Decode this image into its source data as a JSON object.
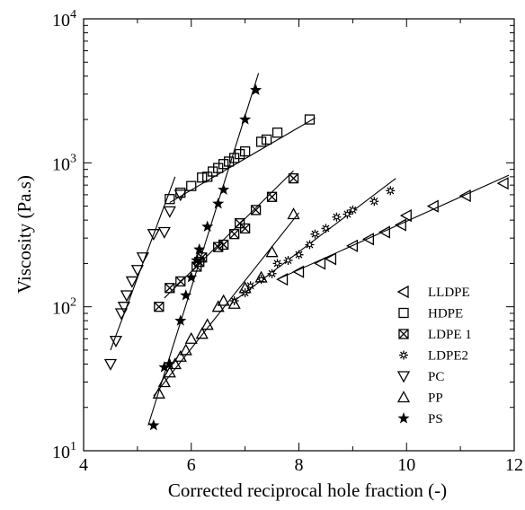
{
  "chart_data": {
    "type": "scatter",
    "xlabel": "Corrected reciprocal hole fraction (-)",
    "ylabel": "Viscosity (Pa.s)",
    "xlim": [
      4,
      12
    ],
    "ylim": [
      10,
      10000
    ],
    "yscale": "log",
    "x_ticks": [
      "4",
      "6",
      "8",
      "10",
      "12"
    ],
    "y_ticks": [
      {
        "base": "10",
        "exp": "1"
      },
      {
        "base": "10",
        "exp": "2"
      },
      {
        "base": "10",
        "exp": "3"
      },
      {
        "base": "10",
        "exp": "4"
      }
    ],
    "legend_position": "bottom-right",
    "series": [
      {
        "name": "LLDPE",
        "marker": "triangle-left",
        "x": [
          7.7,
          8.0,
          8.4,
          8.6,
          9.0,
          9.3,
          9.6,
          9.9,
          10.0,
          10.5,
          11.1,
          11.8
        ],
        "y": [
          155,
          175,
          200,
          215,
          265,
          295,
          330,
          370,
          430,
          500,
          590,
          720
        ],
        "fit": [
          [
            7.6,
            155
          ],
          [
            11.9,
            820
          ]
        ]
      },
      {
        "name": "HDPE",
        "marker": "square",
        "x": [
          5.6,
          5.8,
          6.0,
          6.2,
          6.3,
          6.4,
          6.5,
          6.6,
          6.7,
          6.8,
          6.9,
          7.0,
          7.3,
          7.4,
          7.6,
          8.2
        ],
        "y": [
          560,
          620,
          690,
          790,
          800,
          870,
          920,
          980,
          1020,
          1080,
          1150,
          1200,
          1400,
          1450,
          1620,
          2000
        ],
        "fit": [
          [
            5.6,
            530
          ],
          [
            8.3,
            2050
          ]
        ]
      },
      {
        "name": "LDPE 1",
        "marker": "square-x",
        "x": [
          5.4,
          5.6,
          5.8,
          6.1,
          6.15,
          6.2,
          6.5,
          6.6,
          6.8,
          6.9,
          7.0,
          7.2,
          7.5,
          7.9
        ],
        "y": [
          100,
          135,
          150,
          190,
          205,
          220,
          260,
          270,
          320,
          380,
          350,
          470,
          580,
          780
        ],
        "fit": [
          [
            5.5,
            115
          ],
          [
            7.9,
            880
          ]
        ]
      },
      {
        "name": "LDPE2",
        "marker": "asterisk",
        "x": [
          6.8,
          7.0,
          7.1,
          7.3,
          7.5,
          7.6,
          7.8,
          8.0,
          8.2,
          8.3,
          8.5,
          8.7,
          8.9,
          9.0,
          9.4,
          9.7
        ],
        "y": [
          110,
          125,
          140,
          155,
          170,
          200,
          210,
          230,
          270,
          320,
          350,
          420,
          440,
          470,
          540,
          640
        ],
        "fit": [
          [
            6.8,
            110
          ],
          [
            9.8,
            780
          ]
        ]
      },
      {
        "name": "PC",
        "marker": "triangle-down",
        "x": [
          4.5,
          4.6,
          4.7,
          4.75,
          4.8,
          4.9,
          5.0,
          5.1,
          5.3,
          5.5,
          5.6,
          5.8
        ],
        "y": [
          40,
          58,
          90,
          100,
          120,
          150,
          180,
          220,
          320,
          330,
          460,
          600
        ],
        "fit": [
          [
            4.5,
            50
          ],
          [
            5.7,
            800
          ]
        ]
      },
      {
        "name": "PP",
        "marker": "triangle-up",
        "x": [
          5.4,
          5.5,
          5.6,
          5.7,
          5.8,
          5.9,
          6.0,
          6.2,
          6.3,
          6.5,
          6.6,
          6.8,
          7.0,
          7.3,
          7.5,
          7.9
        ],
        "y": [
          25,
          30,
          35,
          40,
          45,
          50,
          60,
          65,
          75,
          100,
          110,
          105,
          135,
          160,
          240,
          440
        ],
        "fit": [
          [
            5.3,
            24
          ],
          [
            8.0,
            450
          ]
        ]
      },
      {
        "name": "PS",
        "marker": "star",
        "x": [
          5.3,
          5.5,
          5.6,
          5.8,
          5.9,
          6.0,
          6.1,
          6.15,
          6.3,
          6.5,
          6.6,
          7.0,
          7.2
        ],
        "y": [
          15,
          38,
          40,
          80,
          120,
          160,
          210,
          250,
          360,
          520,
          650,
          2000,
          3200
        ],
        "fit": [
          [
            5.2,
            15
          ],
          [
            7.25,
            4200
          ]
        ]
      }
    ]
  }
}
